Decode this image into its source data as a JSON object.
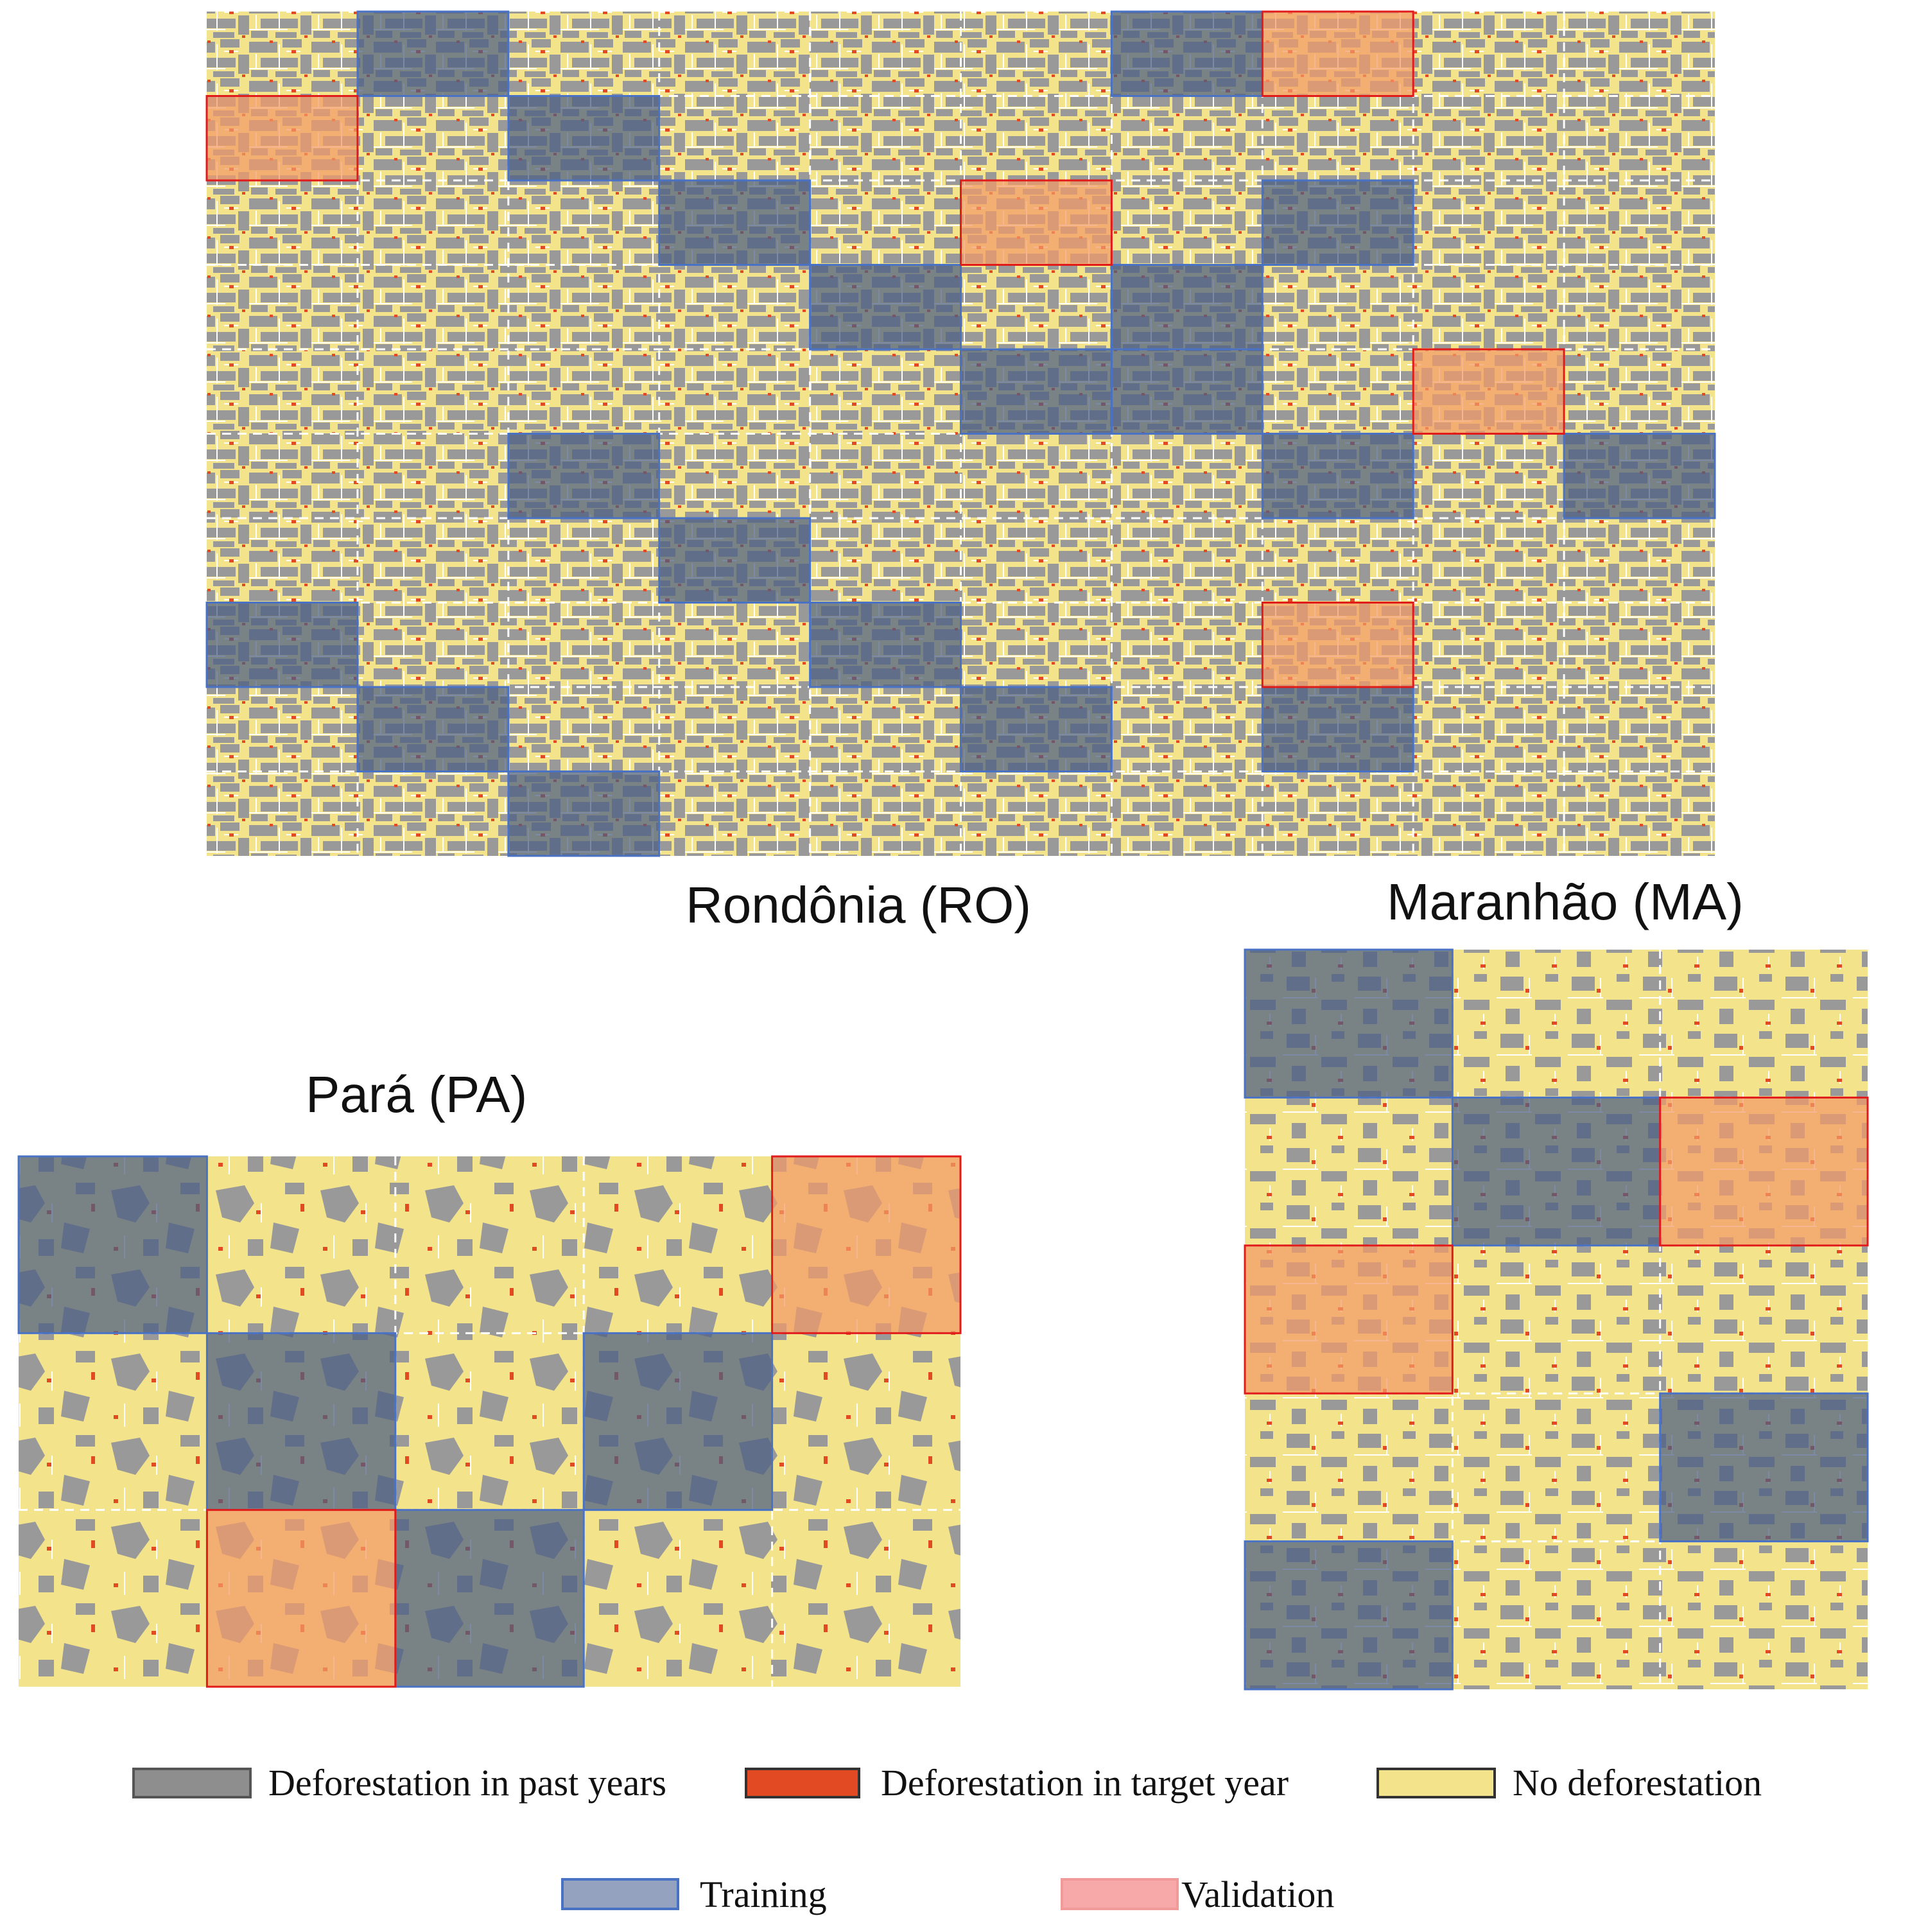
{
  "colors": {
    "past": "#999999",
    "target": "#e24a24",
    "none": "#f3e38b",
    "training_fill": "#4a5d82",
    "training_border": "#4a72c4",
    "validation_fill": "#f39a66",
    "validation_border": "#e11a1a"
  },
  "regions": {
    "ro": {
      "title": "Rondônia (RO)",
      "cols": 10,
      "rows": 10,
      "training": [
        [
          1,
          0
        ],
        [
          6,
          0
        ],
        [
          2,
          1
        ],
        [
          3,
          2
        ],
        [
          7,
          2
        ],
        [
          4,
          3
        ],
        [
          6,
          3
        ],
        [
          5,
          4
        ],
        [
          6,
          4
        ],
        [
          2,
          5
        ],
        [
          7,
          5
        ],
        [
          9,
          5
        ],
        [
          3,
          6
        ],
        [
          0,
          7
        ],
        [
          4,
          7
        ],
        [
          1,
          8
        ],
        [
          5,
          8
        ],
        [
          7,
          8
        ],
        [
          2,
          9
        ]
      ],
      "validation": [
        [
          7,
          0
        ],
        [
          0,
          1
        ],
        [
          5,
          2
        ],
        [
          8,
          4
        ],
        [
          7,
          7
        ]
      ]
    },
    "pa": {
      "title": "Pará (PA)",
      "cols": 5,
      "rows": 3,
      "training": [
        [
          0,
          0
        ],
        [
          1,
          1
        ],
        [
          3,
          1
        ],
        [
          2,
          2
        ]
      ],
      "validation": [
        [
          4,
          0
        ],
        [
          1,
          2
        ]
      ]
    },
    "ma": {
      "title": "Maranhão (MA)",
      "cols": 3,
      "rows": 5,
      "training": [
        [
          0,
          0
        ],
        [
          1,
          1
        ],
        [
          2,
          3
        ],
        [
          0,
          4
        ]
      ],
      "validation": [
        [
          2,
          1
        ],
        [
          0,
          2
        ]
      ]
    }
  },
  "legend": {
    "past": "Deforestation in past years",
    "target": "Deforestation in target year",
    "none": "No deforestation",
    "training": "Training",
    "validation": "Validation"
  }
}
